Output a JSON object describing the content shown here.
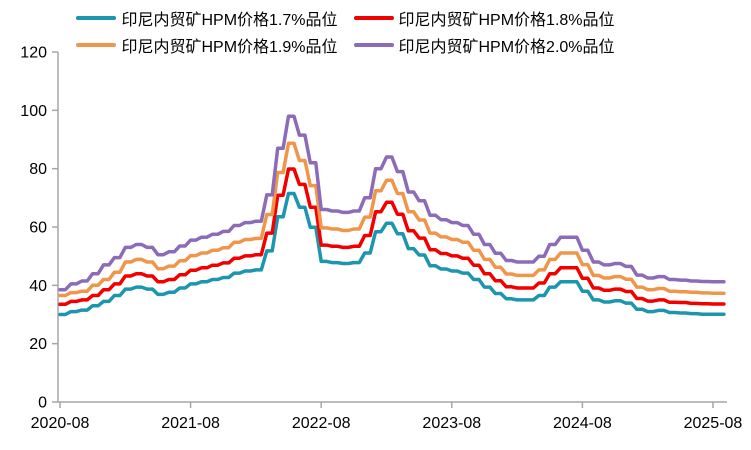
{
  "chart_data": {
    "type": "line",
    "title": "",
    "xlabel": "",
    "ylabel": "",
    "grid": "off",
    "legend_position": "top",
    "ylim": [
      0,
      120
    ],
    "y_ticks": [
      0,
      20,
      40,
      60,
      80,
      100,
      120
    ],
    "x_tick_labels": [
      "2020-08",
      "2021-08",
      "2022-08",
      "2023-08",
      "2024-08",
      "2025-08"
    ],
    "x_tick_months": [
      0,
      12,
      24,
      36,
      48,
      60
    ],
    "x_start": "2020-08",
    "x_months_span": 61,
    "axis_color": "#a6a6a6",
    "text_color": "#000000",
    "series": [
      {
        "name": "印尼内贸矿HPM价格1.7%品位",
        "color": "#1c96ae",
        "values": [
          30,
          31,
          31.5,
          33,
          34.5,
          36.5,
          38.7,
          39.4,
          38.7,
          36.9,
          37.6,
          39.1,
          40.5,
          41.2,
          42,
          42.7,
          44.2,
          44.9,
          45.3,
          51.8,
          63.5,
          71.5,
          66.8,
          59.9,
          48.2,
          47.8,
          47.5,
          47.8,
          51.1,
          58.4,
          61.3,
          57.7,
          52.6,
          50.4,
          46.7,
          45.6,
          44.9,
          44.2,
          42,
          39.4,
          37.2,
          35.4,
          35,
          35,
          36.5,
          39.4,
          41.2,
          41.2,
          38,
          35,
          34.3,
          34.7,
          33.9,
          31.8,
          31,
          31.4,
          30.7,
          30.5,
          30.3,
          30.1,
          30.1,
          30.1
        ]
      },
      {
        "name": "印尼内贸矿HPM价格1.8%品位",
        "color": "#f20000",
        "values": [
          33.5,
          34.5,
          35,
          36.5,
          38.5,
          40.5,
          43.2,
          44,
          43.2,
          41.2,
          42,
          43.6,
          45.2,
          46,
          46.9,
          47.7,
          49.3,
          50.1,
          50.5,
          57.9,
          70.9,
          79.9,
          74.6,
          66.8,
          53.8,
          53.4,
          53,
          53.4,
          57.1,
          65.2,
          68.5,
          64.4,
          58.7,
          56.2,
          52.2,
          50.9,
          50.1,
          49.3,
          46.9,
          44,
          41.6,
          39.5,
          39.1,
          39.1,
          40.8,
          44,
          46,
          46,
          42.4,
          39.1,
          38.3,
          38.7,
          37.9,
          35.5,
          34.6,
          35,
          34.2,
          34.1,
          33.8,
          33.7,
          33.6,
          33.6
        ]
      },
      {
        "name": "印尼内贸矿HPM价格1.9%品位",
        "color": "#f0964b",
        "values": [
          36.5,
          37.5,
          38,
          40,
          42,
          44.5,
          48,
          48.9,
          48,
          45.7,
          46.6,
          48.4,
          50.2,
          51.1,
          52,
          52.9,
          54.8,
          55.7,
          56.1,
          64.3,
          78.7,
          88.7,
          82.8,
          74.2,
          59.7,
          59.3,
          58.8,
          59.3,
          63.4,
          72.4,
          76,
          71.5,
          65.2,
          62.4,
          57.9,
          56.6,
          55.7,
          54.8,
          52,
          48.9,
          46.2,
          43.9,
          43.4,
          43.4,
          45.3,
          48.9,
          51.1,
          51.1,
          47.1,
          43.4,
          42.5,
          43,
          42.1,
          39.4,
          38.5,
          38.9,
          38,
          37.8,
          37.6,
          37.4,
          37.3,
          37.3
        ]
      },
      {
        "name": "印尼内贸矿HPM价格2.0%品位",
        "color": "#8c6bb8",
        "values": [
          38.5,
          40.5,
          41.5,
          44,
          47,
          49.5,
          53,
          54,
          53,
          50.5,
          51.5,
          53.5,
          55.5,
          56.5,
          57.5,
          58.5,
          60.5,
          61.5,
          62,
          71,
          87,
          98,
          91.5,
          82,
          66,
          65.5,
          65,
          65.5,
          70,
          80,
          84,
          79,
          72,
          69,
          64,
          62.5,
          61.5,
          60.5,
          57.5,
          54,
          51,
          48.5,
          48,
          48,
          50,
          54,
          56.5,
          56.5,
          52,
          48,
          47,
          47.5,
          46.5,
          43.5,
          42.5,
          43,
          42,
          41.8,
          41.5,
          41.3,
          41.2,
          41.2
        ]
      }
    ]
  }
}
